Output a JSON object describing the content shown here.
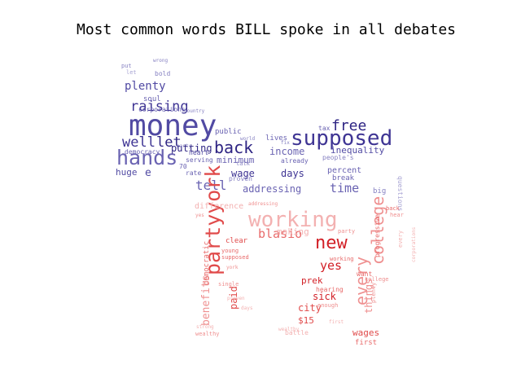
{
  "title": "Most common words BILL spoke in all debates",
  "colors": {
    "upper": [
      "#2e2483",
      "#3f3594",
      "#514aa3",
      "#6a63b2",
      "#8681c2",
      "#a7a3d3"
    ],
    "lower": [
      "#d21f26",
      "#e04a4a",
      "#e86a6a",
      "#ef9090",
      "#f3b1b1",
      "#f8cfcf"
    ]
  },
  "words": [
    {
      "text": "money",
      "group": "upper",
      "shade": 2
    },
    {
      "text": "supposed",
      "group": "upper",
      "shade": 1
    },
    {
      "text": "hands",
      "group": "upper",
      "shade": 3
    },
    {
      "text": "back",
      "group": "upper",
      "shade": 0
    },
    {
      "text": "raising",
      "group": "upper",
      "shade": 1
    },
    {
      "text": "plenty",
      "group": "upper",
      "shade": 2
    },
    {
      "text": "free",
      "group": "upper",
      "shade": 0
    },
    {
      "text": "well",
      "group": "upper",
      "shade": 1
    },
    {
      "text": "let",
      "group": "upper",
      "shade": 0
    },
    {
      "text": "e",
      "group": "upper",
      "shade": 2
    },
    {
      "text": "putting",
      "group": "upper",
      "shade": 0
    },
    {
      "text": "income",
      "group": "upper",
      "shade": 3
    },
    {
      "text": "inequality",
      "group": "upper",
      "shade": 2
    },
    {
      "text": "minimum",
      "group": "upper",
      "shade": 3
    },
    {
      "text": "days",
      "group": "upper",
      "shade": 1
    },
    {
      "text": "wage",
      "group": "upper",
      "shade": 1
    },
    {
      "text": "huge",
      "group": "upper",
      "shade": 2
    },
    {
      "text": "tell",
      "group": "upper",
      "shade": 3
    },
    {
      "text": "addressing",
      "group": "upper",
      "shade": 3
    },
    {
      "text": "time",
      "group": "upper",
      "shade": 3
    },
    {
      "text": "percent",
      "group": "upper",
      "shade": 3
    },
    {
      "text": "break",
      "group": "upper",
      "shade": 3
    },
    {
      "text": "soul",
      "group": "upper",
      "shade": 3
    },
    {
      "text": "corporations",
      "group": "upper",
      "shade": 3
    },
    {
      "text": "public",
      "group": "upper",
      "shade": 3
    },
    {
      "text": "democracy",
      "group": "upper",
      "shade": 3
    },
    {
      "text": "heart",
      "group": "upper",
      "shade": 2
    },
    {
      "text": "serving",
      "group": "upper",
      "shade": 3
    },
    {
      "text": "rate",
      "group": "upper",
      "shade": 3
    },
    {
      "text": "lives",
      "group": "upper",
      "shade": 3
    },
    {
      "text": "already",
      "group": "upper",
      "shade": 3
    },
    {
      "text": "people's",
      "group": "upper",
      "shade": 4
    },
    {
      "text": "tax",
      "group": "upper",
      "shade": 3
    },
    {
      "text": "talk",
      "group": "upper",
      "shade": 4
    },
    {
      "text": "proven",
      "group": "upper",
      "shade": 4
    },
    {
      "text": "bold",
      "group": "upper",
      "shade": 4
    },
    {
      "text": "put",
      "group": "upper",
      "shade": 4
    },
    {
      "text": "let",
      "group": "upper",
      "shade": 5
    },
    {
      "text": "wrong",
      "group": "upper",
      "shade": 4
    },
    {
      "text": "70",
      "group": "upper",
      "shade": 3
    },
    {
      "text": "big",
      "group": "upper",
      "shade": 4
    },
    {
      "text": "country",
      "group": "upper",
      "shade": 4
    },
    {
      "text": "world",
      "group": "upper",
      "shade": 4
    },
    {
      "text": "fix",
      "group": "upper",
      "shade": 4
    },
    {
      "text": "questions",
      "group": "upper",
      "shade": 5
    },
    {
      "text": "party",
      "group": "upper",
      "shade": 4
    },
    {
      "text": "working",
      "group": "lower",
      "shade": 4
    },
    {
      "text": "partyyork",
      "group": "lower",
      "shade": 1
    },
    {
      "text": "new",
      "group": "lower",
      "shade": 0
    },
    {
      "text": "blasio",
      "group": "lower",
      "shade": 2
    },
    {
      "text": "every",
      "group": "lower",
      "shade": 3
    },
    {
      "text": "college",
      "group": "lower",
      "shade": 3
    },
    {
      "text": "yes",
      "group": "lower",
      "shade": 0
    },
    {
      "text": "making",
      "group": "lower",
      "shade": 4
    },
    {
      "text": "benefits",
      "group": "lower",
      "shade": 3
    },
    {
      "text": "paid",
      "group": "lower",
      "shade": 1
    },
    {
      "text": "city",
      "group": "lower",
      "shade": 1
    },
    {
      "text": "sick",
      "group": "lower",
      "shade": 0
    },
    {
      "text": "prek",
      "group": "lower",
      "shade": 0
    },
    {
      "text": "$15",
      "group": "lower",
      "shade": 1
    },
    {
      "text": "wages",
      "group": "lower",
      "shade": 1
    },
    {
      "text": "things",
      "group": "lower",
      "shade": 3
    },
    {
      "text": "difference",
      "group": "lower",
      "shade": 4
    },
    {
      "text": "clear",
      "group": "lower",
      "shade": 1
    },
    {
      "text": "young",
      "group": "lower",
      "shade": 2
    },
    {
      "text": "supposed",
      "group": "lower",
      "shade": 2
    },
    {
      "text": "democratic",
      "group": "lower",
      "shade": 2
    },
    {
      "text": "hearing",
      "group": "lower",
      "shade": 2
    },
    {
      "text": "progressive",
      "group": "lower",
      "shade": 2
    },
    {
      "text": "battle",
      "group": "lower",
      "shade": 4
    },
    {
      "text": "first",
      "group": "lower",
      "shade": 2
    },
    {
      "text": "wealthy",
      "group": "lower",
      "shade": 3
    },
    {
      "text": "strong",
      "group": "lower",
      "shade": 4
    },
    {
      "text": "want",
      "group": "lower",
      "shade": 2
    },
    {
      "text": "enough",
      "group": "lower",
      "shade": 3
    },
    {
      "text": "single",
      "group": "lower",
      "shade": 3
    },
    {
      "text": "back",
      "group": "lower",
      "shade": 2
    },
    {
      "text": "hear",
      "group": "lower",
      "shade": 3
    },
    {
      "text": "plenty",
      "group": "lower",
      "shade": 3
    },
    {
      "text": "yes",
      "group": "lower",
      "shade": 3
    },
    {
      "text": "first",
      "group": "lower",
      "shade": 4
    },
    {
      "text": "days",
      "group": "lower",
      "shade": 4
    },
    {
      "text": "addressing",
      "group": "lower",
      "shade": 3
    },
    {
      "text": "wealthy",
      "group": "lower",
      "shade": 4
    },
    {
      "text": "every",
      "group": "lower",
      "shade": 4
    },
    {
      "text": "corporations",
      "group": "lower",
      "shade": 4
    },
    {
      "text": "working",
      "group": "lower",
      "shade": 2
    },
    {
      "text": "party",
      "group": "lower",
      "shade": 3
    },
    {
      "text": "york",
      "group": "lower",
      "shade": 3
    },
    {
      "text": "college",
      "group": "lower",
      "shade": 3
    },
    {
      "text": "proven",
      "group": "lower",
      "shade": 4
    }
  ]
}
